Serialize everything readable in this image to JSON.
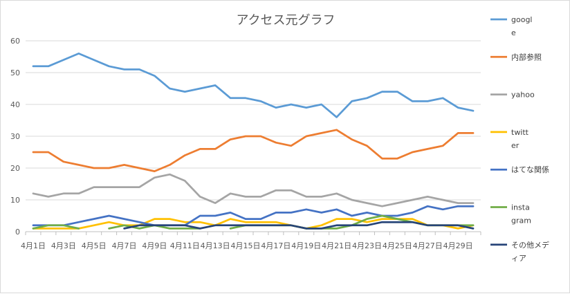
{
  "chart_data": {
    "type": "line",
    "title": "アクセス元グラフ",
    "xlabel": "",
    "ylabel": "",
    "ylim": [
      0,
      60
    ],
    "yticks": [
      0,
      10,
      20,
      30,
      40,
      50,
      60
    ],
    "grid": true,
    "legend_position": "right",
    "x": [
      "4月1日",
      "4月2日",
      "4月3日",
      "4月4日",
      "4月5日",
      "4月6日",
      "4月7日",
      "4月8日",
      "4月9日",
      "4月10日",
      "4月11日",
      "4月12日",
      "4月13日",
      "4月14日",
      "4月15日",
      "4月16日",
      "4月17日",
      "4月18日",
      "4月19日",
      "4月20日",
      "4月21日",
      "4月22日",
      "4月23日",
      "4月24日",
      "4月25日",
      "4月26日",
      "4月27日",
      "4月28日",
      "4月29日",
      "4月30日"
    ],
    "xtick_labels": [
      "4月1日",
      "4月3日",
      "4月5日",
      "4月7日",
      "4月9日",
      "4月11日",
      "4月13日",
      "4月15日",
      "4月17日",
      "4月19日",
      "4月21日",
      "4月23日",
      "4月25日",
      "4月27日",
      "4月29日"
    ],
    "series": [
      {
        "name": "google",
        "color": "#5b9bd5",
        "values": [
          52,
          52,
          54,
          56,
          54,
          52,
          51,
          51,
          49,
          45,
          44,
          45,
          46,
          42,
          42,
          41,
          39,
          40,
          39,
          40,
          36,
          41,
          42,
          44,
          44,
          41,
          41,
          42,
          39,
          38
        ]
      },
      {
        "name": "内部参照",
        "color": "#ed7d31",
        "values": [
          25,
          25,
          22,
          21,
          20,
          20,
          21,
          20,
          19,
          21,
          24,
          26,
          26,
          29,
          30,
          30,
          28,
          27,
          30,
          31,
          32,
          29,
          27,
          23,
          23,
          25,
          26,
          27,
          31,
          31
        ]
      },
      {
        "name": "yahoo",
        "color": "#a5a5a5",
        "values": [
          12,
          11,
          12,
          12,
          14,
          14,
          14,
          14,
          17,
          18,
          16,
          11,
          9,
          12,
          11,
          11,
          13,
          13,
          11,
          11,
          12,
          10,
          9,
          8,
          9,
          10,
          11,
          10,
          9,
          9
        ]
      },
      {
        "name": "twitter",
        "color": "#ffc000",
        "values": [
          1,
          1,
          1,
          1,
          2,
          3,
          2,
          2,
          4,
          4,
          3,
          3,
          2,
          4,
          3,
          3,
          3,
          2,
          1,
          2,
          4,
          4,
          3,
          4,
          4,
          4,
          2,
          2,
          1,
          2
        ]
      },
      {
        "name": "はてな関係",
        "color": "#4472c4",
        "values": [
          2,
          2,
          2,
          3,
          4,
          5,
          4,
          3,
          2,
          2,
          2,
          5,
          5,
          6,
          4,
          4,
          6,
          6,
          7,
          6,
          7,
          5,
          6,
          5,
          5,
          6,
          8,
          7,
          8,
          8
        ]
      },
      {
        "name": "instagram",
        "color": "#70ad47",
        "values": [
          1,
          2,
          2,
          1,
          null,
          1,
          2,
          1,
          2,
          1,
          1,
          1,
          null,
          1,
          2,
          2,
          2,
          2,
          1,
          1,
          1,
          2,
          4,
          5,
          4,
          3,
          2,
          2,
          2,
          2
        ]
      },
      {
        "name": "その他メディア",
        "color": "#264478",
        "values": [
          null,
          null,
          null,
          null,
          null,
          null,
          1,
          2,
          2,
          2,
          2,
          1,
          2,
          2,
          2,
          2,
          2,
          2,
          1,
          1,
          2,
          2,
          2,
          3,
          3,
          3,
          2,
          2,
          2,
          1
        ]
      }
    ]
  }
}
